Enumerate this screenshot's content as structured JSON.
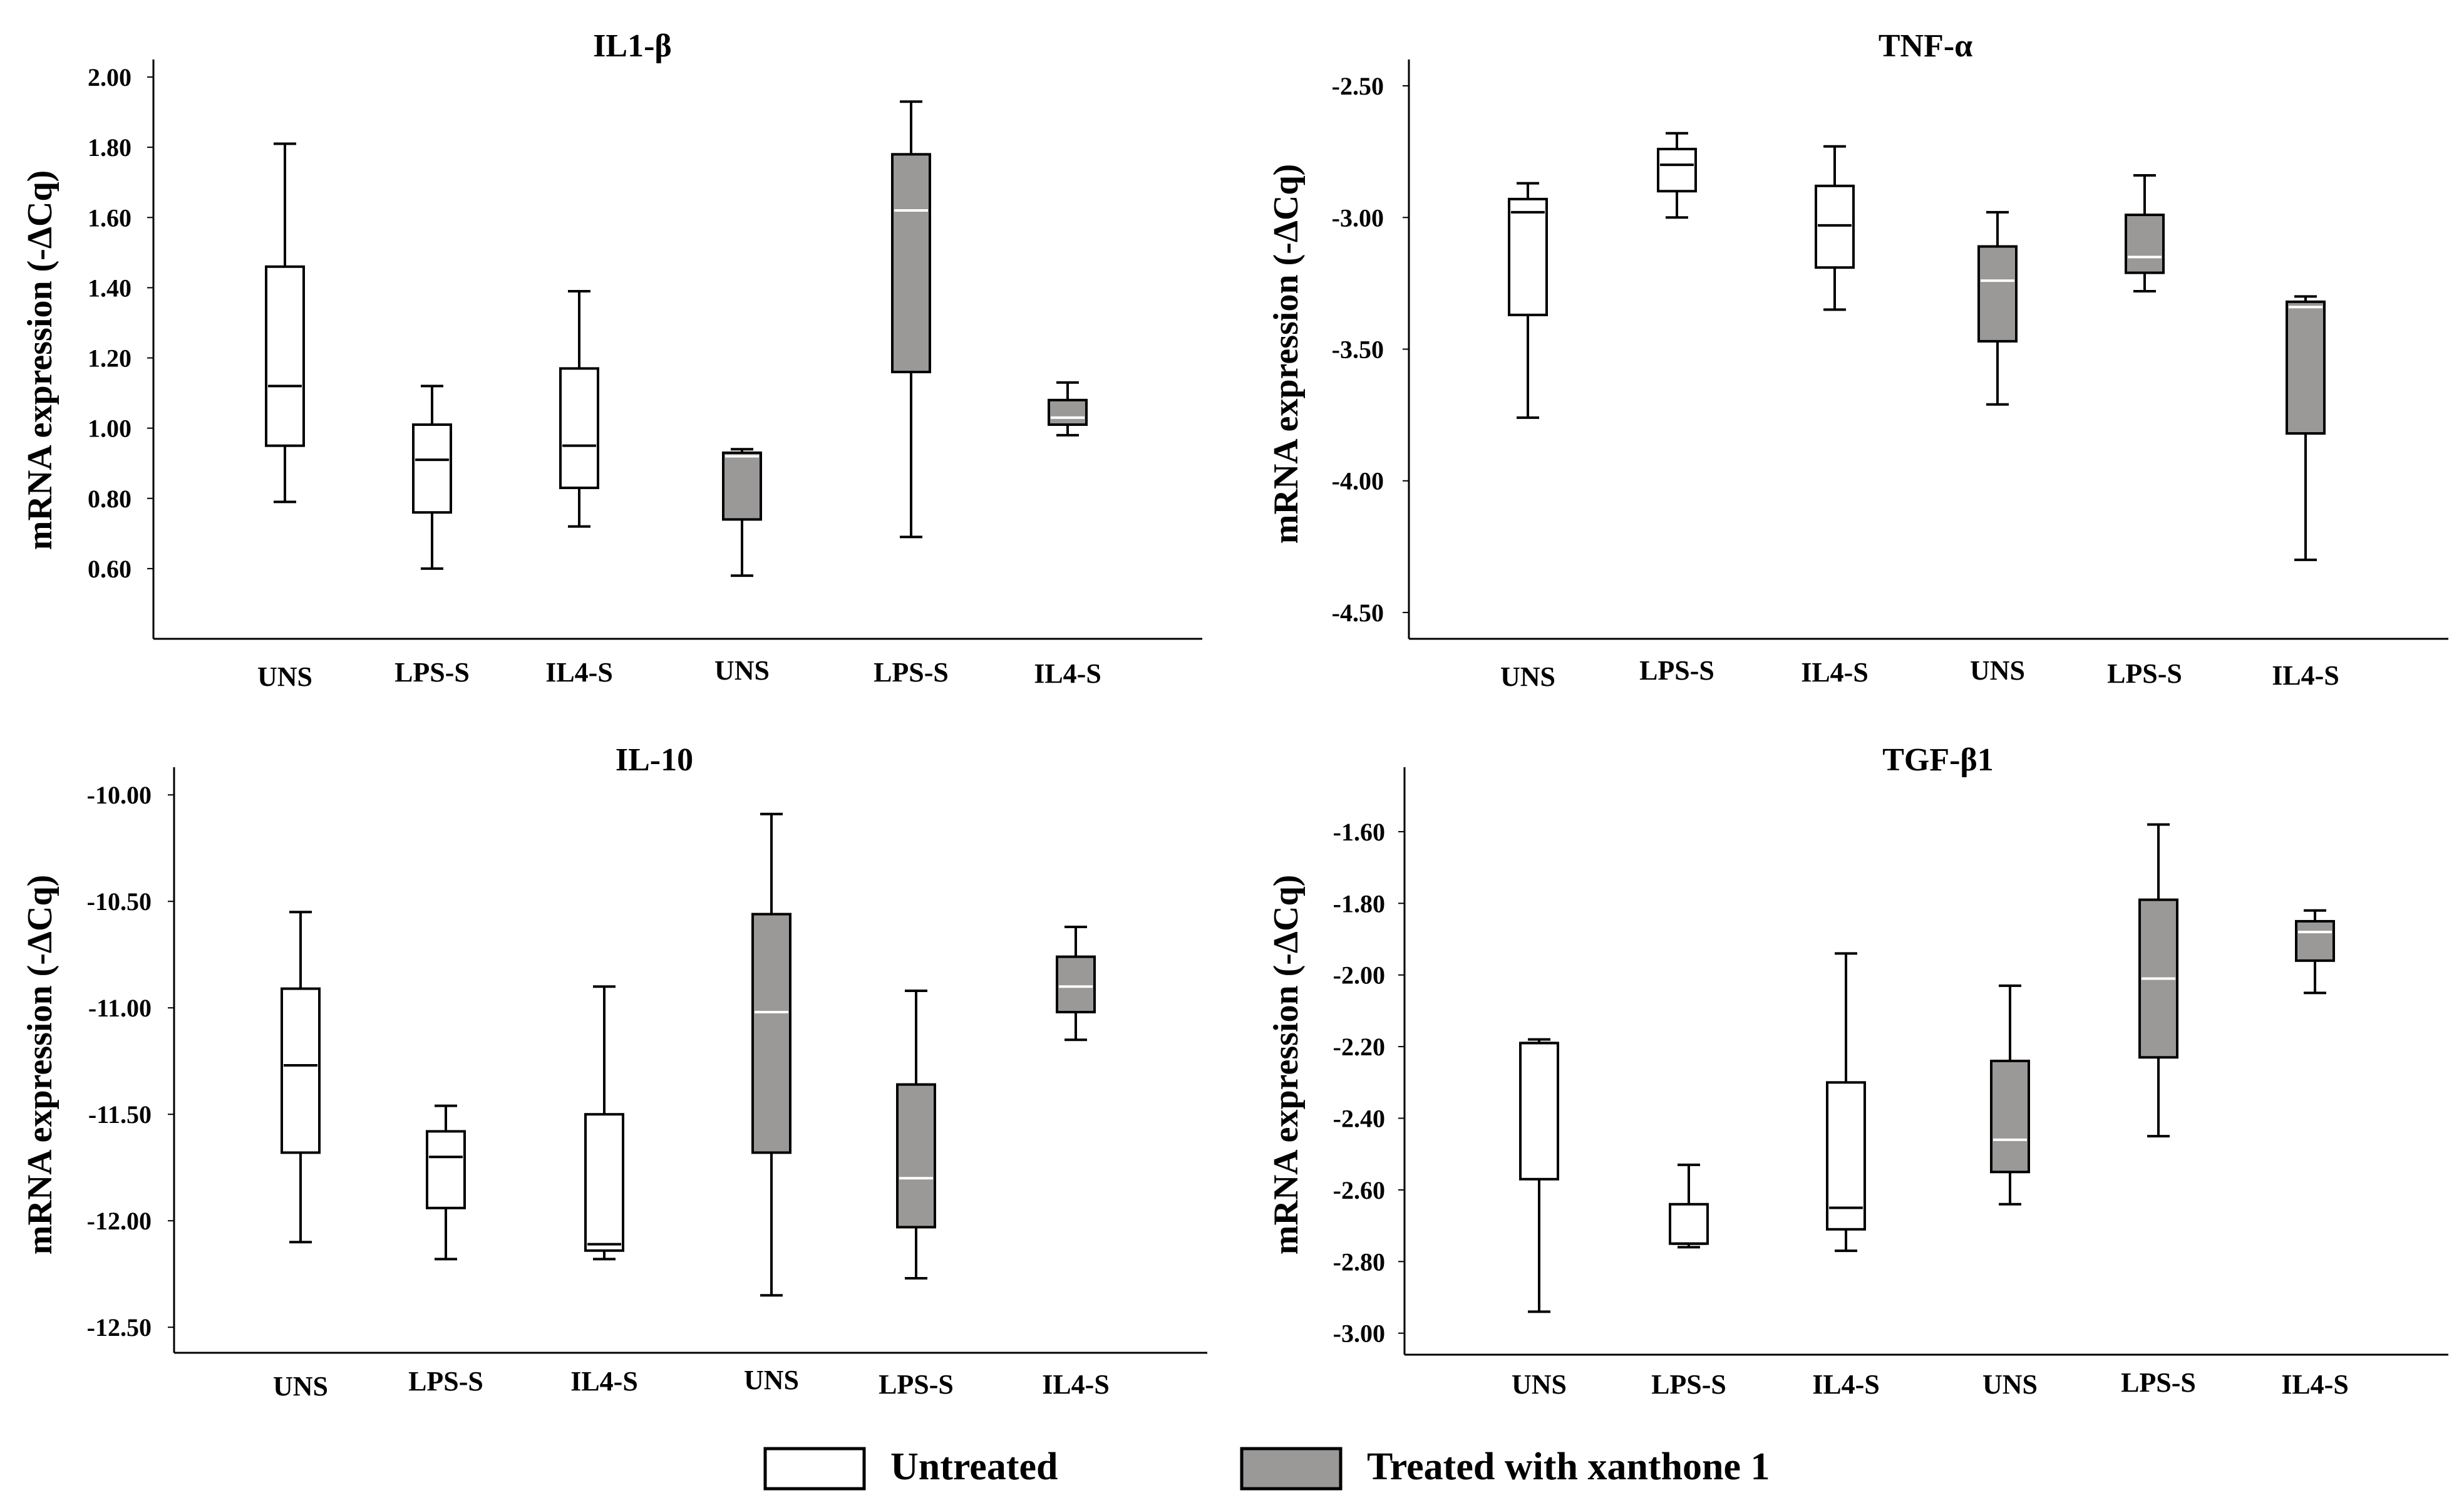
{
  "chart_data": [
    {
      "type": "box",
      "title": "IL1-β",
      "ylabel": "mRNA expression (-ΔCq)",
      "ylim": [
        0.4,
        2.05
      ],
      "yticks": [
        "2.00",
        "1.80",
        "1.60",
        "1.40",
        "1.20",
        "1.00",
        "0.80",
        "0.60"
      ],
      "categories": [
        "UNS",
        "LPS-S",
        "IL4-S",
        "UNS",
        "LPS-S",
        "IL4-S"
      ],
      "boxes": [
        {
          "group": "Untreated",
          "min": 0.79,
          "q1": 0.95,
          "median": 1.12,
          "q3": 1.46,
          "max": 1.81
        },
        {
          "group": "Untreated",
          "min": 0.6,
          "q1": 0.76,
          "median": 0.91,
          "q3": 1.01,
          "max": 1.12
        },
        {
          "group": "Untreated",
          "min": 0.72,
          "q1": 0.83,
          "median": 0.95,
          "q3": 1.17,
          "max": 1.39
        },
        {
          "group": "Treated",
          "min": 0.58,
          "q1": 0.74,
          "median": 0.92,
          "q3": 0.93,
          "max": 0.94
        },
        {
          "group": "Treated",
          "min": 0.69,
          "q1": 1.16,
          "median": 1.62,
          "q3": 1.78,
          "max": 1.93
        },
        {
          "group": "Treated",
          "min": 0.98,
          "q1": 1.01,
          "median": 1.03,
          "q3": 1.08,
          "max": 1.13
        }
      ]
    },
    {
      "type": "box",
      "title": "TNF-α",
      "ylabel": "mRNA expression (-ΔCq)",
      "ylim": [
        -4.6,
        -2.4
      ],
      "yticks": [
        "-2.50",
        "-3.00",
        "-3.50",
        "-4.00",
        "-4.50"
      ],
      "categories": [
        "UNS",
        "LPS-S",
        "IL4-S",
        "UNS",
        "LPS-S",
        "IL4-S"
      ],
      "boxes": [
        {
          "group": "Untreated",
          "min": -3.76,
          "q1": -3.37,
          "median": -2.98,
          "q3": -2.93,
          "max": -2.87
        },
        {
          "group": "Untreated",
          "min": -3.0,
          "q1": -2.9,
          "median": -2.8,
          "q3": -2.74,
          "max": -2.68
        },
        {
          "group": "Untreated",
          "min": -3.35,
          "q1": -3.19,
          "median": -3.03,
          "q3": -2.88,
          "max": -2.73
        },
        {
          "group": "Treated",
          "min": -3.71,
          "q1": -3.47,
          "median": -3.24,
          "q3": -3.11,
          "max": -2.98
        },
        {
          "group": "Treated",
          "min": -3.28,
          "q1": -3.21,
          "median": -3.15,
          "q3": -2.99,
          "max": -2.84
        },
        {
          "group": "Treated",
          "min": -4.3,
          "q1": -3.82,
          "median": -3.34,
          "q3": -3.32,
          "max": -3.3
        }
      ]
    },
    {
      "type": "box",
      "title": "IL-10",
      "ylabel": "mRNA expression (-ΔCq)",
      "ylim": [
        -12.62,
        -9.87
      ],
      "yticks": [
        "-10.00",
        "-10.50",
        "-11.00",
        "-11.50",
        "-12.00",
        "-12.50"
      ],
      "categories": [
        "UNS",
        "LPS-S",
        "IL4-S",
        "UNS",
        "LPS-S",
        "IL4-S"
      ],
      "boxes": [
        {
          "group": "Untreated",
          "min": -12.1,
          "q1": -11.68,
          "median": -11.27,
          "q3": -10.91,
          "max": -10.55
        },
        {
          "group": "Untreated",
          "min": -12.18,
          "q1": -11.94,
          "median": -11.7,
          "q3": -11.58,
          "max": -11.46
        },
        {
          "group": "Untreated",
          "min": -12.18,
          "q1": -12.14,
          "median": -12.11,
          "q3": -11.5,
          "max": -10.9
        },
        {
          "group": "Treated",
          "min": -12.35,
          "q1": -11.68,
          "median": -11.02,
          "q3": -10.56,
          "max": -10.09
        },
        {
          "group": "Treated",
          "min": -12.27,
          "q1": -12.03,
          "median": -11.8,
          "q3": -11.36,
          "max": -10.92
        },
        {
          "group": "Treated",
          "min": -11.15,
          "q1": -11.02,
          "median": -10.9,
          "q3": -10.76,
          "max": -10.62
        }
      ]
    },
    {
      "type": "box",
      "title": "TGF-β1",
      "ylabel": "mRNA expression (-ΔCq)",
      "ylim": [
        -3.06,
        -1.42
      ],
      "yticks": [
        "-1.60",
        "-1.80",
        "-2.00",
        "-2.20",
        "-2.40",
        "-2.60",
        "-2.80",
        "-3.00"
      ],
      "categories": [
        "UNS",
        "LPS-S",
        "IL4-S",
        "UNS",
        "LPS-S",
        "IL4-S"
      ],
      "boxes": [
        {
          "group": "Untreated",
          "min": -2.94,
          "q1": -2.57,
          "median": -2.19,
          "q3": -2.19,
          "max": -2.18
        },
        {
          "group": "Untreated",
          "min": -2.76,
          "q1": -2.75,
          "median": -2.75,
          "q3": -2.64,
          "max": -2.53
        },
        {
          "group": "Untreated",
          "min": -2.77,
          "q1": -2.71,
          "median": -2.65,
          "q3": -2.3,
          "max": -1.94
        },
        {
          "group": "Treated",
          "min": -2.64,
          "q1": -2.55,
          "median": -2.46,
          "q3": -2.24,
          "max": -2.03
        },
        {
          "group": "Treated",
          "min": -2.45,
          "q1": -2.23,
          "median": -2.01,
          "q3": -1.79,
          "max": -1.58
        },
        {
          "group": "Treated",
          "min": -2.05,
          "q1": -1.96,
          "median": -1.88,
          "q3": -1.85,
          "max": -1.82
        }
      ]
    }
  ],
  "legend": {
    "untreated_label": "Untreated",
    "treated_label": "Treated with xanthone 1"
  },
  "colors": {
    "untreated_fill": "#ffffff",
    "treated_fill": "#9b9898",
    "stroke": "#000000",
    "treated_median": "#ffffff",
    "untreated_median": "#000000"
  }
}
